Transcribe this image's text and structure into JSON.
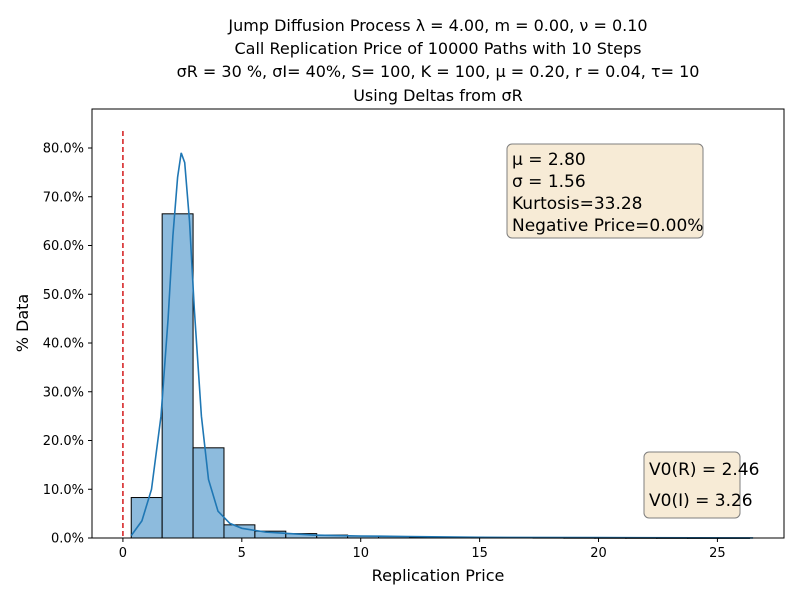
{
  "chart_data": {
    "type": "bar",
    "title_lines": [
      "Jump Diffusion Process  λ =  4.00, m =  0.00, ν =  0.10",
      "Call Replication Price of 10000 Paths with 10 Steps",
      "σR = 30 %, σI= 40%, S= 100, K = 100, μ = 0.20, r = 0.04, τ= 10",
      "Using Deltas from σR"
    ],
    "xlabel": "Replication Price",
    "ylabel": "% Data",
    "xlim": [
      -1.3,
      27.8
    ],
    "ylim": [
      0,
      0.88
    ],
    "x_ticks": [
      0,
      5,
      10,
      15,
      20,
      25
    ],
    "y_ticks": [
      0,
      0.1,
      0.2,
      0.3,
      0.4,
      0.5,
      0.6,
      0.7,
      0.8
    ],
    "y_tick_labels": [
      "0.0%",
      "10.0%",
      "20.0%",
      "30.0%",
      "40.0%",
      "50.0%",
      "60.0%",
      "70.0%",
      "80.0%"
    ],
    "grid": false,
    "bins": [
      {
        "x0": 0.35,
        "x1": 1.65,
        "value": 0.083
      },
      {
        "x0": 1.65,
        "x1": 2.95,
        "value": 0.665
      },
      {
        "x0": 2.95,
        "x1": 4.25,
        "value": 0.185
      },
      {
        "x0": 4.25,
        "x1": 5.55,
        "value": 0.027
      },
      {
        "x0": 5.55,
        "x1": 6.85,
        "value": 0.014
      },
      {
        "x0": 6.85,
        "x1": 8.15,
        "value": 0.009
      },
      {
        "x0": 8.15,
        "x1": 9.45,
        "value": 0.006
      },
      {
        "x0": 9.45,
        "x1": 10.75,
        "value": 0.004
      },
      {
        "x0": 10.75,
        "x1": 12.05,
        "value": 0.003
      },
      {
        "x0": 12.05,
        "x1": 13.35,
        "value": 0.002
      },
      {
        "x0": 13.35,
        "x1": 14.65,
        "value": 0.0015
      },
      {
        "x0": 14.65,
        "x1": 15.95,
        "value": 0.001
      },
      {
        "x0": 15.95,
        "x1": 17.25,
        "value": 0.001
      },
      {
        "x0": 17.25,
        "x1": 18.55,
        "value": 0.0008
      },
      {
        "x0": 18.55,
        "x1": 19.85,
        "value": 0.0006
      },
      {
        "x0": 19.85,
        "x1": 21.15,
        "value": 0.0005
      },
      {
        "x0": 21.15,
        "x1": 22.45,
        "value": 0.0004
      },
      {
        "x0": 22.45,
        "x1": 23.75,
        "value": 0.0003
      },
      {
        "x0": 23.75,
        "x1": 25.05,
        "value": 0.0002
      },
      {
        "x0": 25.05,
        "x1": 26.35,
        "value": 0.0002
      }
    ],
    "kde_curve": {
      "x": [
        0.35,
        0.8,
        1.2,
        1.6,
        1.9,
        2.1,
        2.3,
        2.45,
        2.6,
        2.8,
        3.0,
        3.3,
        3.6,
        4.0,
        4.5,
        5.0,
        6.0,
        7.0,
        8.0,
        10.0,
        12.0,
        15.0,
        20.0,
        26.5
      ],
      "y": [
        0.005,
        0.035,
        0.1,
        0.25,
        0.45,
        0.62,
        0.74,
        0.79,
        0.77,
        0.65,
        0.47,
        0.25,
        0.12,
        0.055,
        0.03,
        0.02,
        0.012,
        0.009,
        0.006,
        0.004,
        0.003,
        0.0015,
        0.0008,
        0.0003
      ]
    },
    "reference_line": {
      "x": 0,
      "color": "#d62728"
    },
    "bar_fill": "#8dbbdd",
    "bar_edge": "#000000",
    "curve_color": "#1f77b4",
    "stats_box": {
      "lines": [
        "μ = 2.80",
        "σ = 1.56",
        "Kurtosis=33.28",
        "Negative Price=0.00%"
      ],
      "placement": "top-right",
      "fill": "#f7ebd6",
      "edge": "#7f7f7f"
    },
    "value_box": {
      "lines": [
        "V0(R) = 2.46",
        "V0(I) = 3.26"
      ],
      "placement": "bottom-right",
      "fill": "#f7ebd6",
      "edge": "#7f7f7f"
    }
  }
}
